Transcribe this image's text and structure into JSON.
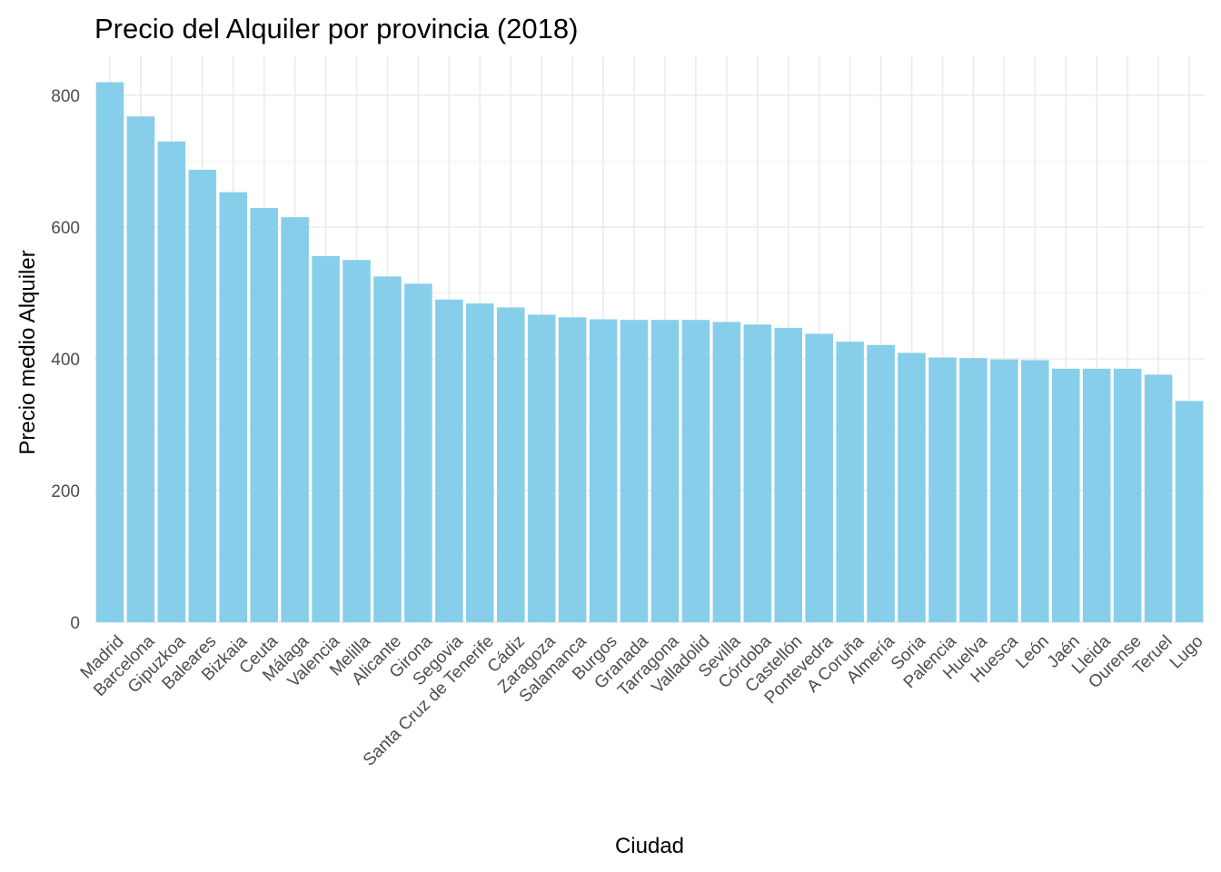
{
  "chart_data": {
    "type": "bar",
    "title": "Precio del Alquiler por provincia (2018)",
    "xlabel": "Ciudad",
    "ylabel": "Precio medio Alquiler",
    "ylim": [
      0,
      860
    ],
    "yticks": [
      0,
      200,
      400,
      600,
      800
    ],
    "grid": true,
    "bar_color": "#87CEEB",
    "categories": [
      "Madrid",
      "Barcelona",
      "Gipuzkoa",
      "Baleares",
      "Bizkaia",
      "Ceuta",
      "Málaga",
      "Valencia",
      "Melilla",
      "Alicante",
      "Girona",
      "Segovia",
      "Santa Cruz de Tenerife",
      "Cádiz",
      "Zaragoza",
      "Salamanca",
      "Burgos",
      "Granada",
      "Tarragona",
      "Valladolid",
      "Sevilla",
      "Córdoba",
      "Castellón",
      "Pontevedra",
      "A Coruña",
      "Almería",
      "Soria",
      "Palencia",
      "Huelva",
      "Huesca",
      "León",
      "Jaén",
      "Lleida",
      "Ourense",
      "Teruel",
      "Lugo"
    ],
    "values": [
      820,
      768,
      730,
      687,
      653,
      629,
      615,
      556,
      550,
      525,
      514,
      490,
      484,
      478,
      467,
      463,
      460,
      459,
      459,
      459,
      456,
      452,
      447,
      438,
      426,
      421,
      409,
      402,
      401,
      399,
      398,
      385,
      385,
      385,
      376,
      336
    ]
  }
}
